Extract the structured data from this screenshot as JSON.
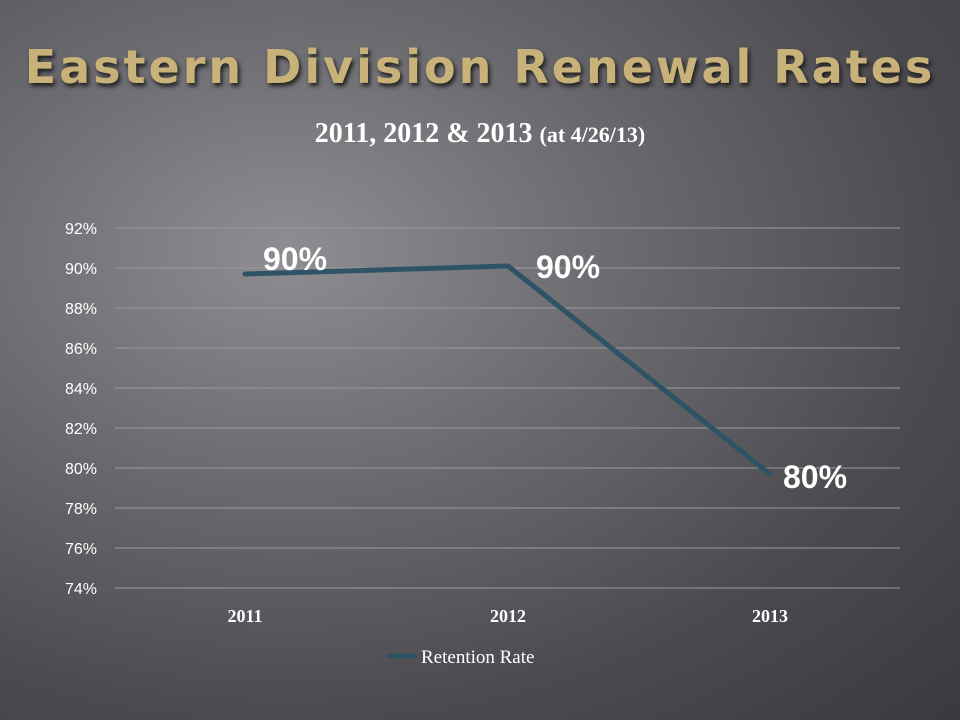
{
  "slide": {
    "title": "Eastern Division Renewal Rates"
  },
  "chart_data": {
    "type": "line",
    "title_main": "2011, 2012 & 2013",
    "title_note": "(at 4/26/13)",
    "categories": [
      "2011",
      "2012",
      "2013"
    ],
    "series": [
      {
        "name": "Retention Rate",
        "values": [
          89.7,
          90.1,
          79.7
        ],
        "data_labels": [
          "90%",
          "90%",
          "80%"
        ],
        "color": "#2f5366"
      }
    ],
    "ylim": [
      74,
      92
    ],
    "yticks": [
      74,
      76,
      78,
      80,
      82,
      84,
      86,
      88,
      90,
      92
    ],
    "ytick_labels": [
      "74%",
      "76%",
      "78%",
      "80%",
      "82%",
      "84%",
      "86%",
      "88%",
      "90%",
      "92%"
    ],
    "grid": true,
    "legend_position": "bottom"
  }
}
